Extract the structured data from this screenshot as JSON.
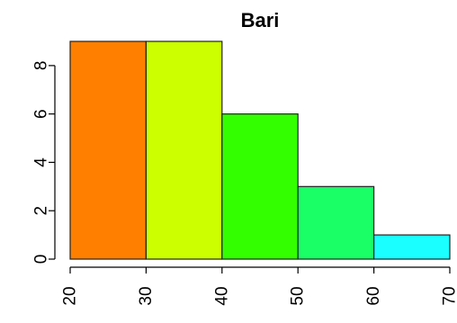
{
  "chart_data": {
    "type": "bar",
    "title": "Bari",
    "xlabel": "",
    "ylabel": "",
    "bins": [
      {
        "x0": 20,
        "x1": 30,
        "count": 9,
        "color": "#FF8000"
      },
      {
        "x0": 30,
        "x1": 40,
        "count": 9,
        "color": "#CCFF00"
      },
      {
        "x0": 40,
        "x1": 50,
        "count": 6,
        "color": "#33FF00"
      },
      {
        "x0": 50,
        "x1": 60,
        "count": 3,
        "color": "#1AFF66"
      },
      {
        "x0": 60,
        "x1": 70,
        "count": 1,
        "color": "#1AFFFF"
      }
    ],
    "xlim": [
      20,
      70
    ],
    "ylim": [
      0,
      9
    ],
    "x_ticks": [
      "20",
      "30",
      "40",
      "50",
      "60",
      "70"
    ],
    "y_ticks": [
      "0",
      "2",
      "4",
      "6",
      "8"
    ],
    "grid": false,
    "legend": "none"
  }
}
